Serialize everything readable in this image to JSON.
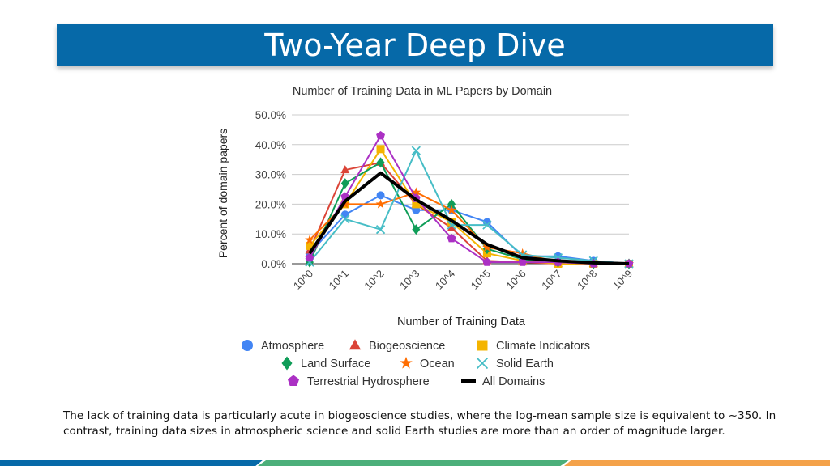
{
  "slide": {
    "title": "Two-Year Deep Dive",
    "caption": "The lack of training data is particularly acute in biogeoscience studies, where the log-mean sample size is equivalent to ~350. In contrast, training data sizes in atmospheric science and solid Earth studies are more than an order of magnitude larger."
  },
  "colors": {
    "title_bar": "#0669a8",
    "stripe_blue": "#0669a8",
    "stripe_green": "#4caf7a",
    "stripe_orange": "#f4a24a"
  },
  "chart_data": {
    "type": "line",
    "title": "Number of Training Data in ML Papers by Domain",
    "xlabel": "Number of Training Data",
    "ylabel": "Percent of domain papers",
    "categories": [
      "10^0",
      "10^1",
      "10^2",
      "10^3",
      "10^4",
      "10^5",
      "10^6",
      "10^7",
      "10^8",
      "10^9"
    ],
    "y_ticks": [
      "0.0%",
      "10.0%",
      "20.0%",
      "30.0%",
      "40.0%",
      "50.0%"
    ],
    "ylim": [
      0,
      50
    ],
    "grid": true,
    "legend_position": "bottom",
    "series": [
      {
        "name": "Atmosphere",
        "color": "#4285f4",
        "marker": "circle",
        "values": [
          3.5,
          16.5,
          23.0,
          18.0,
          18.0,
          14.0,
          2.5,
          2.5,
          1.0,
          0.0
        ]
      },
      {
        "name": "Biogeoscience",
        "color": "#db4437",
        "marker": "triangle",
        "values": [
          4.5,
          31.5,
          34.0,
          20.0,
          12.0,
          1.0,
          0.5,
          0.0,
          0.0,
          0.0
        ]
      },
      {
        "name": "Climate Indicators",
        "color": "#f4b400",
        "marker": "square",
        "values": [
          6.0,
          20.0,
          38.5,
          20.0,
          14.0,
          3.5,
          1.0,
          0.0,
          0.0,
          0.0
        ]
      },
      {
        "name": "Land Surface",
        "color": "#0f9d58",
        "marker": "diamond",
        "values": [
          0.5,
          27.0,
          34.0,
          11.5,
          20.0,
          5.0,
          1.5,
          0.5,
          0.0,
          0.0
        ]
      },
      {
        "name": "Ocean",
        "color": "#ff6d00",
        "marker": "star",
        "values": [
          8.0,
          20.0,
          20.0,
          24.0,
          18.0,
          5.5,
          3.5,
          0.5,
          0.0,
          0.0
        ]
      },
      {
        "name": "Solid Earth",
        "color": "#46bdc6",
        "marker": "x",
        "values": [
          0.5,
          15.0,
          11.5,
          38.0,
          13.0,
          13.0,
          3.0,
          2.0,
          1.0,
          0.0
        ]
      },
      {
        "name": "Terrestrial Hydrosphere",
        "color": "#ab30c4",
        "marker": "pentagon",
        "values": [
          2.0,
          22.5,
          43.0,
          22.0,
          8.5,
          0.5,
          0.5,
          0.5,
          0.0,
          0.0
        ]
      },
      {
        "name": "All Domains",
        "color": "#000000",
        "marker": "none",
        "bold": true,
        "values": [
          3.5,
          21.0,
          30.5,
          21.5,
          14.5,
          6.5,
          2.0,
          1.0,
          0.3,
          0.0
        ]
      }
    ]
  }
}
